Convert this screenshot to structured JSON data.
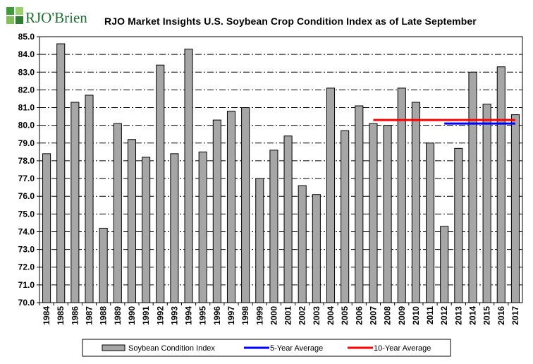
{
  "header": {
    "logo_text": "RJO'Brien",
    "title": "RJO Market Insights U.S. Soybean Crop Condition Index as of Late September"
  },
  "chart_data": {
    "type": "bar",
    "title": "RJO Market Insights U.S. Soybean Crop Condition Index as of Late September",
    "xlabel": "",
    "ylabel": "",
    "ylim": [
      70.0,
      85.0
    ],
    "y_ticks": [
      "70.0",
      "71.0",
      "72.0",
      "73.0",
      "74.0",
      "75.0",
      "76.0",
      "77.0",
      "78.0",
      "79.0",
      "80.0",
      "81.0",
      "82.0",
      "83.0",
      "84.0",
      "85.0"
    ],
    "grid": "horizontal dash-dot",
    "legend_placement": "bottom",
    "categories": [
      "1984",
      "1985",
      "1986",
      "1987",
      "1988",
      "1989",
      "1990",
      "1991",
      "1992",
      "1993",
      "1994",
      "1995",
      "1996",
      "1997",
      "1998",
      "1999",
      "2000",
      "2001",
      "2002",
      "2003",
      "2004",
      "2005",
      "2006",
      "2007",
      "2008",
      "2009",
      "2010",
      "2011",
      "2012",
      "2013",
      "2014",
      "2015",
      "2016",
      "2017"
    ],
    "series": [
      {
        "name": "Soybean Condition Index",
        "type": "bar",
        "color": "#a6a6a6",
        "values": [
          78.4,
          84.6,
          81.3,
          81.7,
          74.2,
          80.1,
          79.2,
          78.2,
          83.4,
          78.4,
          84.3,
          78.5,
          80.3,
          80.8,
          81.0,
          77.0,
          78.6,
          79.4,
          76.6,
          76.1,
          82.1,
          79.7,
          81.1,
          80.1,
          80.0,
          82.1,
          81.3,
          79.0,
          74.3,
          78.7,
          83.0,
          81.2,
          83.3,
          80.6
        ]
      },
      {
        "name": "5-Year Average",
        "type": "line",
        "color": "#0000ff",
        "x_start": "2012",
        "x_end": "2017",
        "value": 80.1
      },
      {
        "name": "10-Year Average",
        "type": "line",
        "color": "#ff0000",
        "x_start": "2007",
        "x_end": "2017",
        "value": 80.3
      }
    ]
  }
}
